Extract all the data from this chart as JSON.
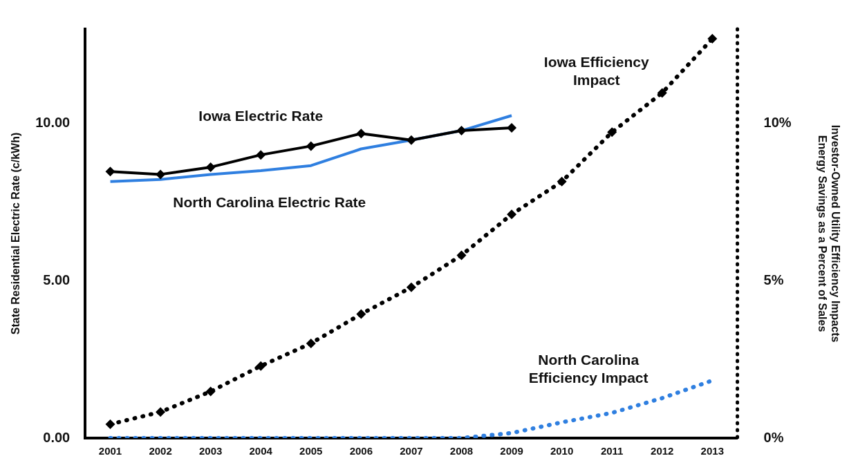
{
  "chart_data": {
    "type": "line",
    "ylabel": "State Residential Electric Rate (c/kWh)",
    "y2label": "Investor-Owned Utility Efficiency Impacts\nEnergy Savings as a Percent of Sales",
    "categories": [
      "2001",
      "2002",
      "2003",
      "2004",
      "2005",
      "2006",
      "2007",
      "2008",
      "2009",
      "2010",
      "2011",
      "2012",
      "2013"
    ],
    "ylim": [
      0,
      13
    ],
    "yticks": [
      {
        "value": 0,
        "label": "0.00"
      },
      {
        "value": 5,
        "label": "5.00"
      },
      {
        "value": 10,
        "label": "10.00"
      }
    ],
    "y2lim": [
      0,
      13
    ],
    "y2ticks": [
      {
        "value": 0,
        "label": "0%"
      },
      {
        "value": 5,
        "label": "5%"
      },
      {
        "value": 10,
        "label": "10%"
      }
    ],
    "grid": false,
    "legend": false,
    "series": [
      {
        "name": "Iowa Electric Rate",
        "color": "#000000",
        "marker": "diamond",
        "line_style": "solid",
        "values": [
          8.47,
          8.38,
          8.61,
          9.0,
          9.28,
          9.68,
          9.47,
          9.77,
          9.86,
          null,
          null,
          null,
          null
        ]
      },
      {
        "name": "North Carolina Electric Rate",
        "color": "#2f7fe0",
        "marker": "none",
        "line_style": "solid",
        "values": [
          8.15,
          8.22,
          8.38,
          8.5,
          8.66,
          9.19,
          9.47,
          9.77,
          10.25,
          null,
          null,
          null,
          null
        ]
      },
      {
        "name": "Iowa Efficiency\nImpact",
        "color": "#000000",
        "marker": "diamond",
        "line_style": "dotted",
        "axis": "y2",
        "values": [
          0.44,
          0.83,
          1.48,
          2.29,
          3.01,
          3.94,
          4.79,
          5.81,
          7.11,
          8.15,
          9.72,
          10.97,
          12.69
        ]
      },
      {
        "name": "North Carolina\nEfficiency Impact",
        "color": "#2f7fe0",
        "marker": "none",
        "line_style": "dotted",
        "axis": "y2",
        "values": [
          0,
          0,
          0,
          0,
          0,
          0,
          0,
          0,
          0.16,
          0.5,
          0.8,
          1.27,
          1.83
        ]
      }
    ]
  }
}
